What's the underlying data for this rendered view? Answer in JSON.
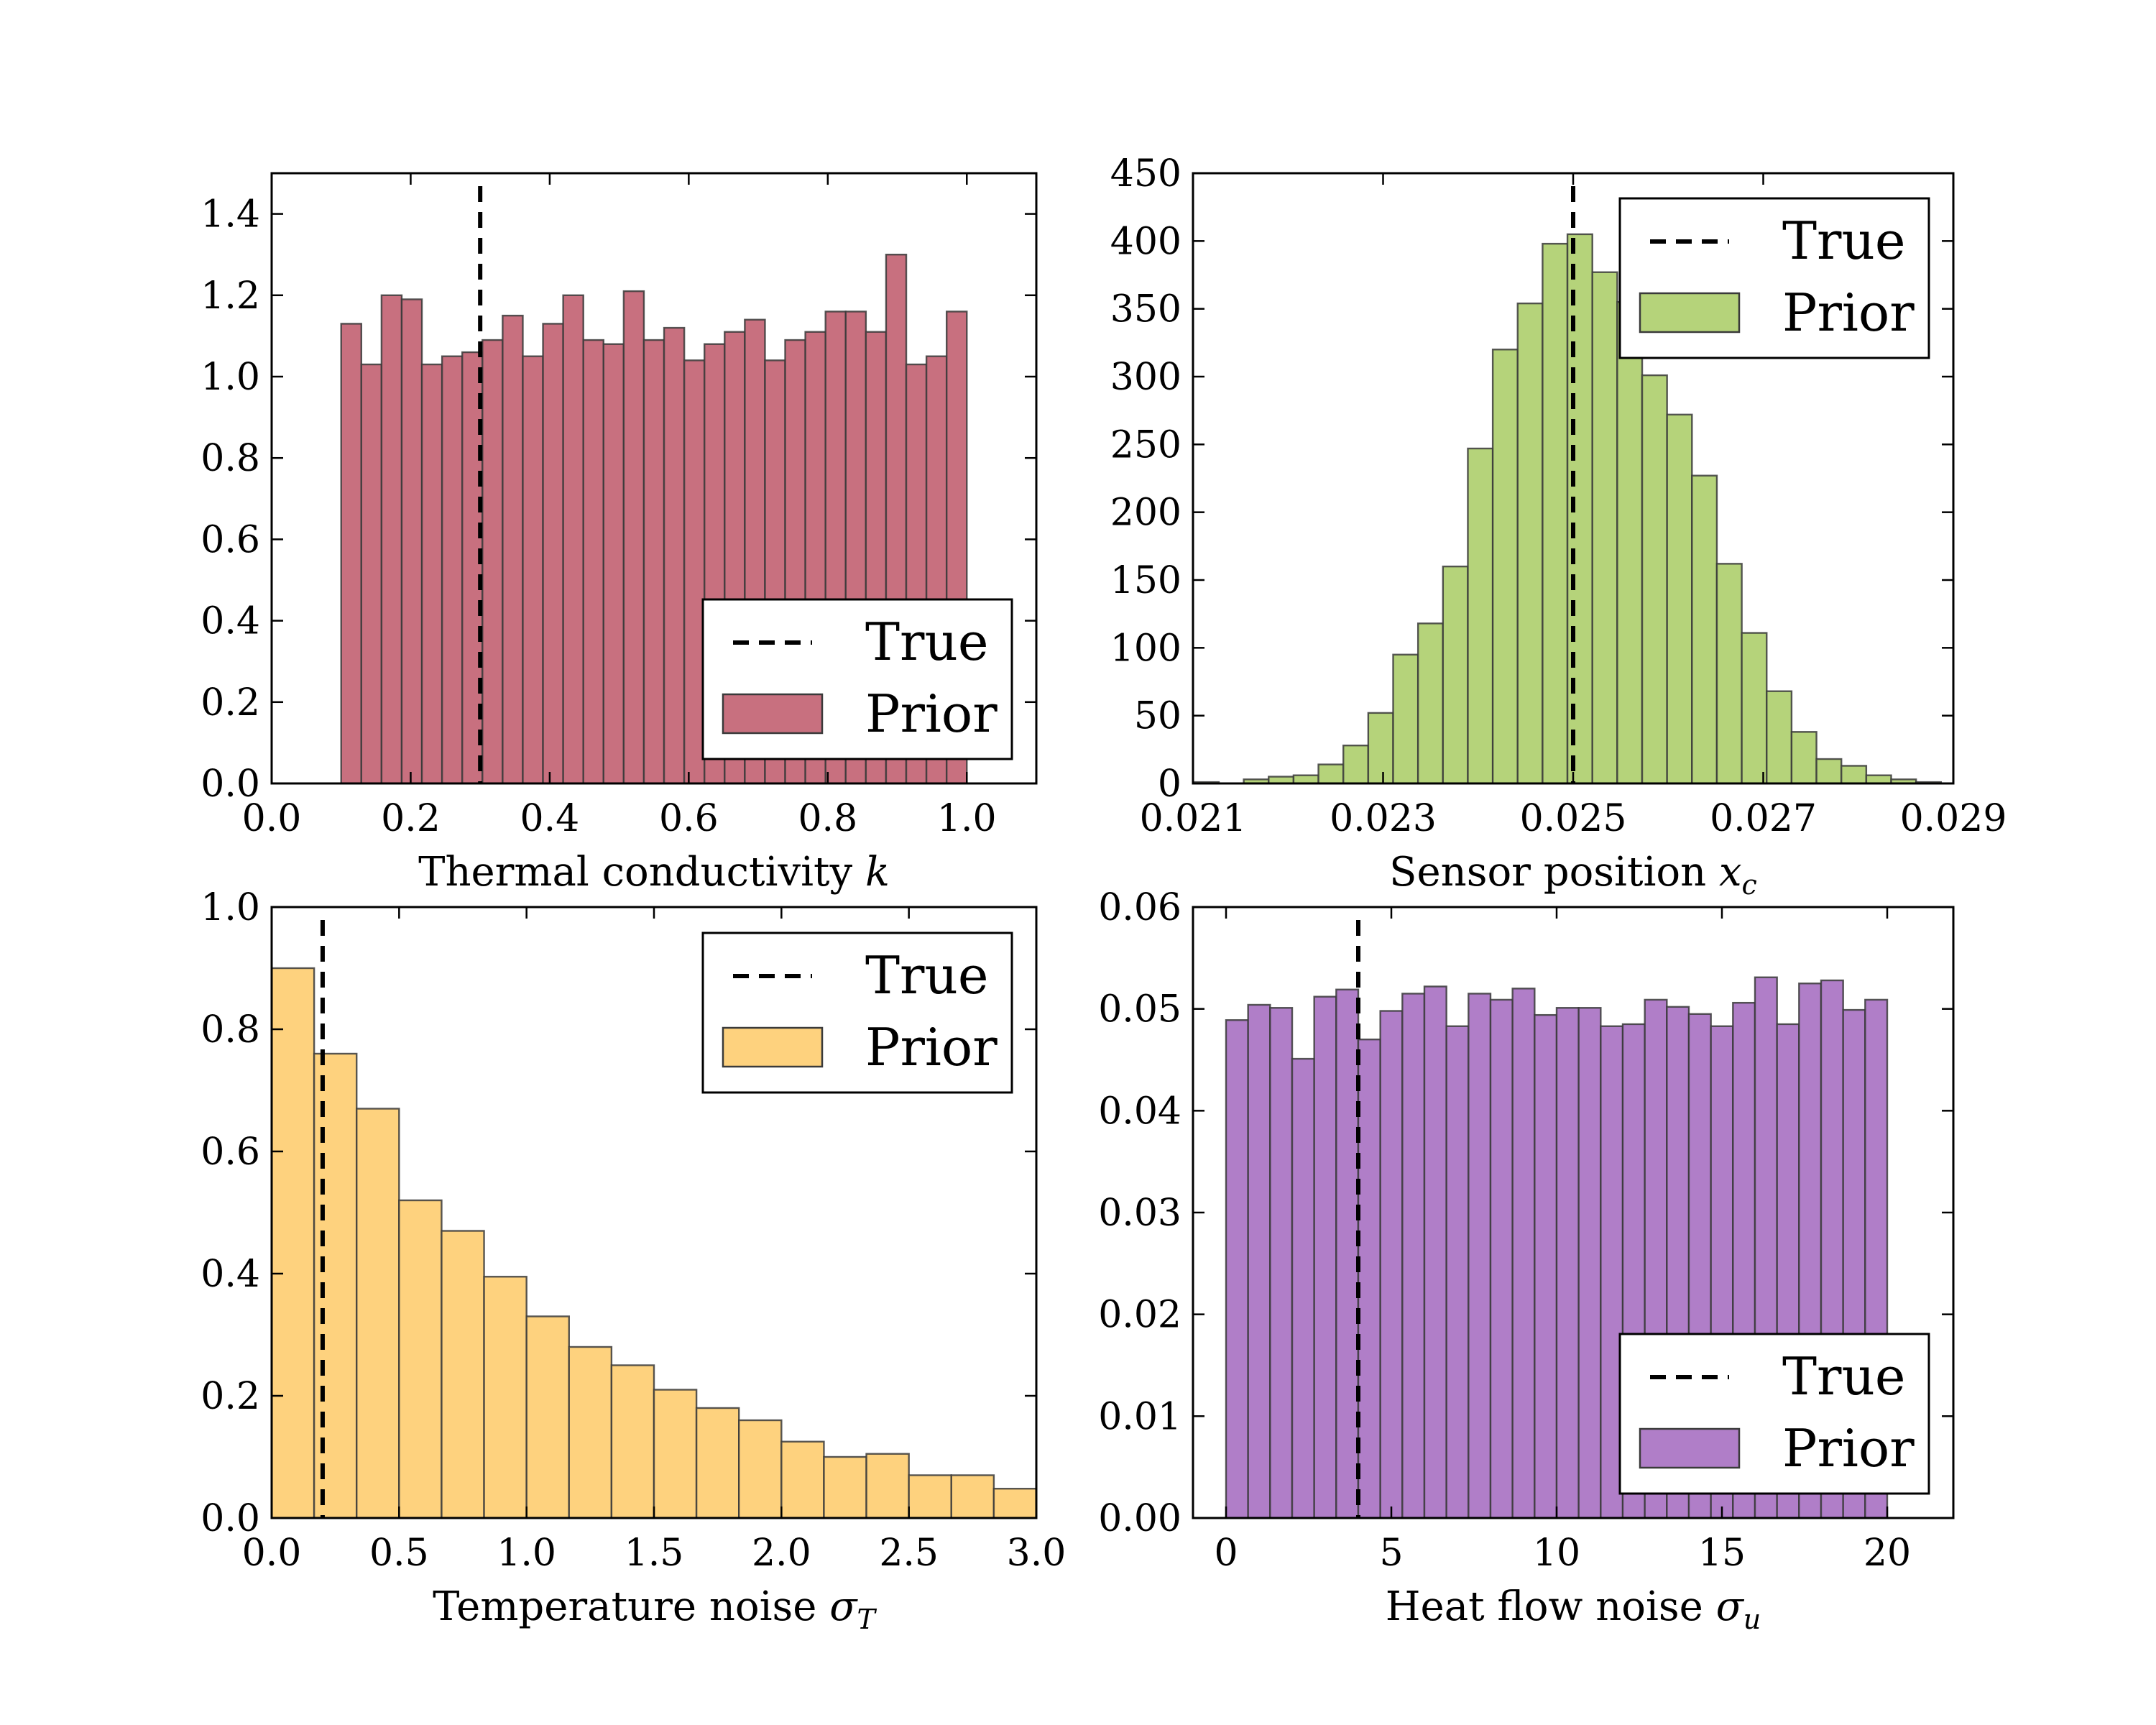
{
  "chart_data": [
    {
      "type": "bar",
      "subtype": "histogram",
      "color": "#c8707f",
      "xlabel": "Thermal conductivity",
      "xlabel_symbol": "k",
      "xlabel_sub": "",
      "xlim": [
        0.0,
        1.1
      ],
      "ylim": [
        0.0,
        1.5
      ],
      "xticks": [
        0.0,
        0.2,
        0.4,
        0.6,
        0.8,
        1.0
      ],
      "xtick_labels": [
        "0.0",
        "0.2",
        "0.4",
        "0.6",
        "0.8",
        "1.0"
      ],
      "yticks": [
        0.0,
        0.2,
        0.4,
        0.6,
        0.8,
        1.0,
        1.2,
        1.4
      ],
      "ytick_labels": [
        "0.0",
        "0.2",
        "0.4",
        "0.6",
        "0.8",
        "1.0",
        "1.2",
        "1.4"
      ],
      "bin_start": 0.1,
      "bin_end": 1.0,
      "values": [
        1.13,
        1.03,
        1.2,
        1.19,
        1.03,
        1.05,
        1.06,
        1.09,
        1.15,
        1.05,
        1.13,
        1.2,
        1.09,
        1.08,
        1.21,
        1.09,
        1.12,
        1.04,
        1.08,
        1.11,
        1.14,
        1.04,
        1.09,
        1.11,
        1.16,
        1.16,
        1.11,
        1.3,
        1.03,
        1.05,
        1.16
      ],
      "true_value": 0.3,
      "legend_position": "lower-right",
      "legend": [
        "True",
        "Prior"
      ]
    },
    {
      "type": "bar",
      "subtype": "histogram",
      "color": "#b5d37a",
      "xlabel": "Sensor position",
      "xlabel_symbol": "x",
      "xlabel_sub": "c",
      "xlim": [
        0.021,
        0.029
      ],
      "ylim": [
        0,
        450
      ],
      "xticks": [
        0.021,
        0.023,
        0.025,
        0.027,
        0.029
      ],
      "xtick_labels": [
        "0.021",
        "0.023",
        "0.025",
        "0.027",
        "0.029"
      ],
      "yticks": [
        0,
        50,
        100,
        150,
        200,
        250,
        300,
        350,
        400,
        450
      ],
      "ytick_labels": [
        "0",
        "50",
        "100",
        "150",
        "200",
        "250",
        "300",
        "350",
        "400",
        "450"
      ],
      "bin_start": 0.02101,
      "bin_end": 0.02887,
      "values": [
        1,
        0,
        3,
        5,
        6,
        14,
        28,
        52,
        95,
        118,
        160,
        247,
        320,
        354,
        398,
        405,
        377,
        355,
        301,
        272,
        227,
        162,
        111,
        68,
        38,
        18,
        13,
        6,
        3,
        1
      ],
      "true_value": 0.025,
      "legend_position": "upper-right",
      "legend": [
        "True",
        "Prior"
      ]
    },
    {
      "type": "bar",
      "subtype": "histogram",
      "color": "#fed27e",
      "xlabel": "Temperature noise",
      "xlabel_symbol": "σ",
      "xlabel_sub": "T",
      "xlim": [
        0.0,
        3.0
      ],
      "ylim": [
        0.0,
        1.0
      ],
      "xticks": [
        0.0,
        0.5,
        1.0,
        1.5,
        2.0,
        2.5,
        3.0
      ],
      "xtick_labels": [
        "0.0",
        "0.5",
        "1.0",
        "1.5",
        "2.0",
        "2.5",
        "3.0"
      ],
      "yticks": [
        0.0,
        0.2,
        0.4,
        0.6,
        0.8,
        1.0
      ],
      "ytick_labels": [
        "0.0",
        "0.2",
        "0.4",
        "0.6",
        "0.8",
        "1.0"
      ],
      "bin_start": 0.0,
      "bin_end": 3.0,
      "values": [
        0.9,
        0.76,
        0.67,
        0.52,
        0.47,
        0.395,
        0.33,
        0.28,
        0.25,
        0.21,
        0.18,
        0.16,
        0.125,
        0.1,
        0.105,
        0.07,
        0.07,
        0.048
      ],
      "true_value": 0.2,
      "legend_position": "upper-right",
      "legend": [
        "True",
        "Prior"
      ]
    },
    {
      "type": "bar",
      "subtype": "histogram",
      "color": "#b07ec8",
      "xlabel": "Heat flow noise",
      "xlabel_symbol": "σ",
      "xlabel_sub": "u",
      "xlim": [
        -1,
        22
      ],
      "ylim": [
        0.0,
        0.06
      ],
      "xticks": [
        0,
        5,
        10,
        15,
        20
      ],
      "xtick_labels": [
        "0",
        "5",
        "10",
        "15",
        "20"
      ],
      "yticks": [
        0.0,
        0.01,
        0.02,
        0.03,
        0.04,
        0.05,
        0.06
      ],
      "ytick_labels": [
        "0.00",
        "0.01",
        "0.02",
        "0.03",
        "0.04",
        "0.05",
        "0.06"
      ],
      "bin_start": 0.0,
      "bin_end": 20.0,
      "values": [
        0.0489,
        0.0504,
        0.0501,
        0.0451,
        0.0512,
        0.0519,
        0.047,
        0.0498,
        0.0515,
        0.0522,
        0.0483,
        0.0515,
        0.0509,
        0.052,
        0.0494,
        0.0501,
        0.0501,
        0.0483,
        0.0485,
        0.0509,
        0.0502,
        0.0495,
        0.0483,
        0.0506,
        0.0531,
        0.0485,
        0.0525,
        0.0528,
        0.0499,
        0.0509
      ],
      "true_value": 4.0,
      "legend_position": "lower-right",
      "legend": [
        "True",
        "Prior"
      ]
    }
  ]
}
